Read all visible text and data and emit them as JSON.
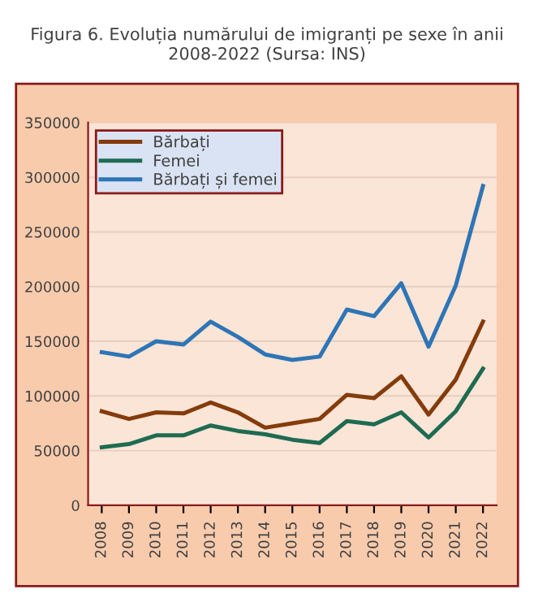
{
  "chart_data": {
    "type": "line",
    "title": "Figura 6. Evoluția numărului de imigranți pe sexe în anii 2008-2022 (Sursa: INS)",
    "categories": [
      "2008",
      "2009",
      "2010",
      "2011",
      "2012",
      "2013",
      "2014",
      "2015",
      "2016",
      "2017",
      "2018",
      "2019",
      "2020",
      "2021",
      "2022"
    ],
    "series": [
      {
        "name": "Bărbați",
        "color": "#843c0c",
        "values": [
          86000,
          79000,
          85000,
          84000,
          94000,
          85000,
          71000,
          75000,
          79000,
          101000,
          98000,
          118000,
          83000,
          115000,
          168000
        ]
      },
      {
        "name": "Femei",
        "color": "#1e6b52",
        "values": [
          53000,
          56000,
          64000,
          64000,
          73000,
          68000,
          65000,
          60000,
          57000,
          77000,
          74000,
          85000,
          62000,
          86000,
          125000
        ]
      },
      {
        "name": "Bărbați și femei",
        "color": "#2e75b6",
        "values": [
          140000,
          136000,
          150000,
          147000,
          168000,
          154000,
          138000,
          133000,
          136000,
          179000,
          173000,
          203000,
          145000,
          201000,
          292000
        ]
      }
    ],
    "ylim": [
      0,
      350000
    ],
    "yticks": [
      0,
      50000,
      100000,
      150000,
      200000,
      250000,
      300000,
      350000
    ],
    "grid": "y",
    "legend": "top left",
    "marker": "none",
    "line_style": "solid"
  }
}
